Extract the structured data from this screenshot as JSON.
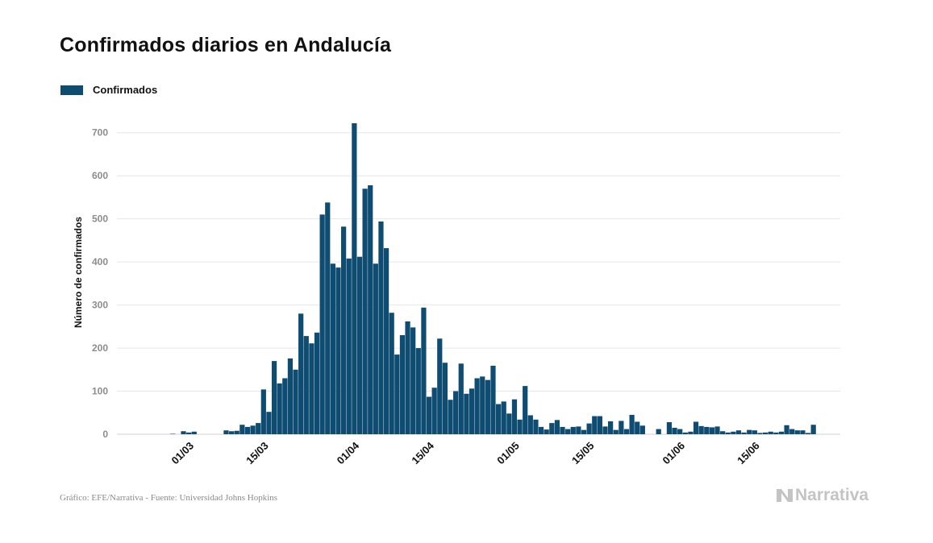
{
  "title": "Confirmados diarios en Andalucía",
  "legend": {
    "label": "Confirmados"
  },
  "footer": {
    "source": "Gráfico: EFE/Narrativa - Fuente: Universidad Johns Hopkins",
    "brand": "Narrativa"
  },
  "colors": {
    "bar": "#0e4c72",
    "grid": "#e6e6e6",
    "brand": "#c4c4c4"
  },
  "chart_data": {
    "type": "bar",
    "title": "Confirmados diarios en Andalucía",
    "xlabel": "",
    "ylabel": "Número de confirmados",
    "ylim": [
      0,
      750
    ],
    "yticks": [
      0,
      100,
      200,
      300,
      400,
      500,
      600,
      700
    ],
    "xticks": [
      {
        "label": "01/03",
        "index": 8
      },
      {
        "label": "15/03",
        "index": 22
      },
      {
        "label": "01/04",
        "index": 39
      },
      {
        "label": "15/04",
        "index": 53
      },
      {
        "label": "01/05",
        "index": 69
      },
      {
        "label": "15/05",
        "index": 83
      },
      {
        "label": "01/06",
        "index": 100
      },
      {
        "label": "15/06",
        "index": 114
      }
    ],
    "grid": true,
    "legend_position": "top-left",
    "series": [
      {
        "name": "Confirmados",
        "values": [
          0,
          0,
          0,
          0,
          1,
          0,
          7,
          4,
          6,
          0,
          0,
          0,
          0,
          0,
          9,
          7,
          8,
          22,
          17,
          20,
          26,
          104,
          52,
          170,
          118,
          130,
          176,
          150,
          280,
          228,
          211,
          236,
          510,
          538,
          396,
          387,
          482,
          408,
          722,
          412,
          570,
          578,
          396,
          494,
          432,
          282,
          185,
          230,
          262,
          248,
          200,
          294,
          87,
          108,
          222,
          166,
          80,
          100,
          164,
          94,
          106,
          130,
          134,
          126,
          159,
          70,
          76,
          48,
          81,
          34,
          112,
          44,
          34,
          17,
          11,
          26,
          33,
          17,
          12,
          17,
          18,
          10,
          25,
          42,
          42,
          18,
          30,
          10,
          31,
          12,
          45,
          29,
          20,
          0,
          0,
          12,
          0,
          28,
          15,
          12,
          4,
          6,
          29,
          19,
          17,
          16,
          18,
          7,
          4,
          6,
          9,
          4,
          10,
          9,
          3,
          4,
          6,
          4,
          6,
          21,
          12,
          9,
          9,
          3,
          22
        ]
      }
    ]
  }
}
